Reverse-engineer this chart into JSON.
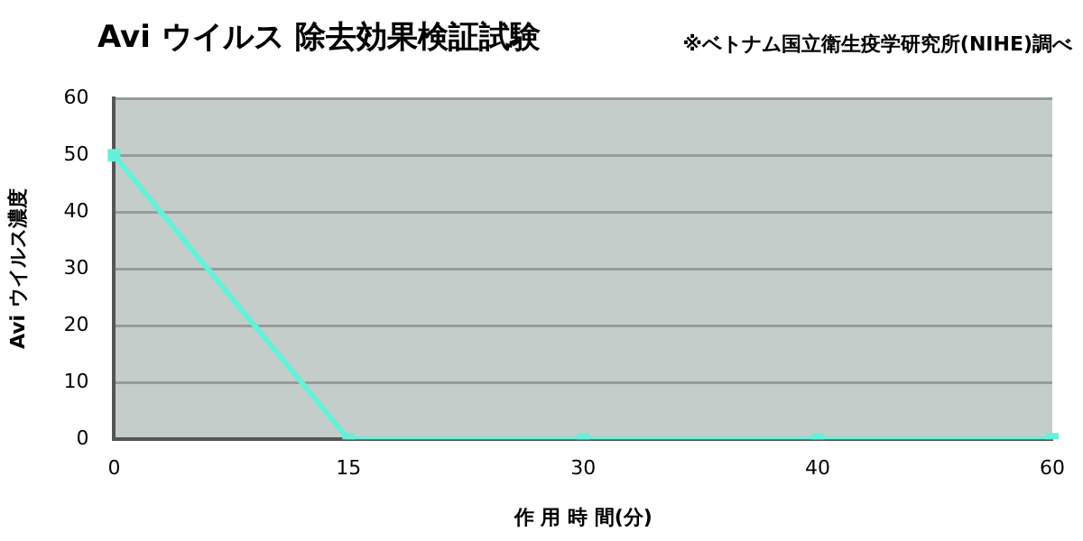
{
  "chart_data": {
    "type": "line",
    "title": "Avi ウイルス 除去効果検証試験",
    "annotations": [
      "※ベトナム国立衛生疫学研究所(NIHE)調べ"
    ],
    "xlabel": "作 用 時 間(分)",
    "ylabel": "Avi ウイルス濃度",
    "categories": [
      "0",
      "15",
      "30",
      "40",
      "60"
    ],
    "series": [
      {
        "color": "#66f0d8",
        "values": [
          50,
          0,
          0,
          0,
          0
        ]
      }
    ],
    "ylim": [
      0,
      60
    ],
    "yticks": [
      0,
      10,
      20,
      30,
      40,
      50,
      60
    ],
    "grid": "y",
    "marker": "square",
    "line_style": "solid",
    "legend": false
  }
}
